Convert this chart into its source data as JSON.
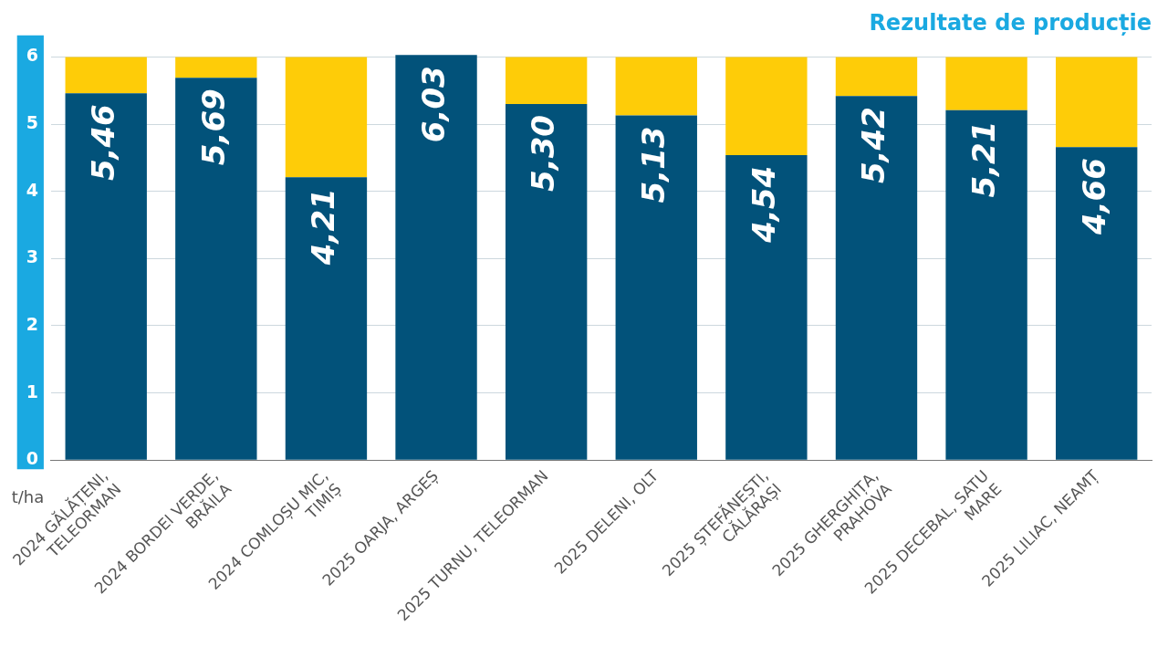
{
  "chart_data": {
    "type": "bar",
    "title": "Rezultate de producție",
    "ylabel": "t/ha",
    "stacked": true,
    "categories": [
      "2024 GĂLĂȚENI,\nTELEORMAN",
      "2024 BORDEI VERDE,\nBRĂILA",
      "2024 COMLOȘU MIC,\nTIMIȘ",
      "2025 OARJA, ARGEȘ",
      "2025 TURNU, TELEORMAN",
      "2025 DELENI, OLT",
      "2025 ȘTEFĂNEȘTI,\nCĂLĂRAȘI",
      "2025 GHERGHIȚA,\nPRAHOVA",
      "2025 DECEBAL, SATU\nMARE",
      "2025 LILIAC, NEAMȚ"
    ],
    "series": [
      {
        "color": "#02527a",
        "values": [
          5.46,
          5.69,
          4.21,
          6.03,
          5.3,
          5.13,
          4.54,
          5.42,
          5.21,
          4.66
        ],
        "value_labels": [
          "5,46",
          "5,69",
          "4,21",
          "6,03",
          "5,30",
          "5,13",
          "4,54",
          "5,42",
          "5,21",
          "4,66"
        ]
      },
      {
        "color": "#fecc08",
        "values": [
          0.54,
          0.31,
          1.79,
          null,
          0.7,
          0.87,
          1.46,
          0.58,
          0.79,
          1.34
        ]
      }
    ],
    "ylim": [
      0,
      6.05
    ],
    "yticks": [
      0,
      1,
      2,
      3,
      4,
      5,
      6
    ],
    "grid": "y",
    "legend": false
  }
}
